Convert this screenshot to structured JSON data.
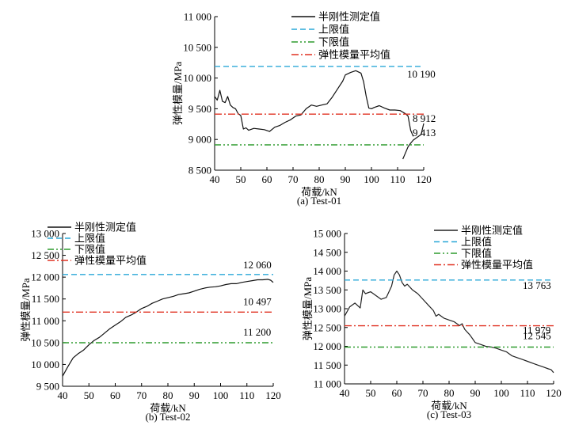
{
  "chart_data": [
    {
      "type": "line",
      "caption": "(a) Test-01",
      "xlabel": "荷载/kN",
      "ylabel": "弹性模量/MPa",
      "xlim": [
        40,
        120
      ],
      "ylim": [
        8500,
        11000
      ],
      "xticks": [
        40,
        50,
        60,
        70,
        80,
        90,
        100,
        110,
        120
      ],
      "xtick_labels": [
        "40",
        "50",
        "60",
        "70",
        "80",
        "90",
        "100",
        "110",
        "120"
      ],
      "yticks": [
        8500,
        9000,
        9500,
        10000,
        10500,
        11000
      ],
      "ytick_labels": [
        "8 500",
        "9 000",
        "9 500",
        "10 000",
        "10 500",
        "11 000"
      ],
      "legend": [
        "半刚性测定值",
        "上限值",
        "下限值",
        "弹性模量平均值"
      ],
      "legend_position": "top-right",
      "series": [
        {
          "name": "半刚性测定值",
          "style": "solid",
          "color": "#111111",
          "x": [
            40,
            41,
            42,
            43,
            44,
            45,
            46,
            47,
            48,
            49,
            50,
            51,
            52,
            53,
            55,
            57,
            59,
            61,
            63,
            65,
            67,
            69,
            71,
            73,
            75,
            77,
            79,
            81,
            83,
            85,
            87,
            89,
            90,
            92,
            94,
            96,
            97,
            98,
            99,
            100,
            101,
            103,
            105,
            107,
            109,
            111,
            113,
            114,
            115,
            116
          ],
          "y": [
            9700,
            9640,
            9800,
            9620,
            9600,
            9700,
            9560,
            9520,
            9500,
            9420,
            9390,
            9170,
            9190,
            9150,
            9180,
            9170,
            9160,
            9130,
            9200,
            9230,
            9280,
            9320,
            9380,
            9400,
            9500,
            9560,
            9540,
            9560,
            9580,
            9690,
            9820,
            9950,
            10050,
            10090,
            10120,
            10080,
            9940,
            9700,
            9510,
            9500,
            9520,
            9550,
            9510,
            9480,
            9480,
            9470,
            9420,
            9380,
            9150,
            9050
          ]
        },
        {
          "name": "半刚性测定值",
          "style": "solid",
          "color": "#111111",
          "x": [
            112,
            113,
            114,
            115,
            116,
            117,
            118,
            119,
            120
          ],
          "y": [
            8680,
            8780,
            8880,
            8940,
            8990,
            9020,
            9050,
            9080,
            9260
          ]
        },
        {
          "name": "上限值",
          "style": "dashed",
          "color": "#2aa8d8",
          "value": 10190,
          "x": [
            40,
            120
          ],
          "y": [
            10190,
            10190
          ]
        },
        {
          "name": "下限值",
          "style": "dashdotdot",
          "color": "#2e9b2e",
          "value": 8912,
          "x": [
            40,
            120
          ],
          "y": [
            8912,
            8912
          ]
        },
        {
          "name": "弹性模量平均值",
          "style": "dashdot",
          "color": "#e03020",
          "value": 9413,
          "x": [
            40,
            120
          ],
          "y": [
            9413,
            9413
          ]
        }
      ],
      "annotations": [
        "10 190",
        "9 413",
        "8 912"
      ]
    },
    {
      "type": "line",
      "caption": "(b) Test-02",
      "xlabel": "荷载/kN",
      "ylabel": "弹性模量/MPa",
      "xlim": [
        40,
        120
      ],
      "ylim": [
        9500,
        13000
      ],
      "xticks": [
        40,
        50,
        60,
        70,
        80,
        90,
        100,
        110,
        120
      ],
      "xtick_labels": [
        "40",
        "50",
        "60",
        "70",
        "80",
        "90",
        "100",
        "110",
        "120"
      ],
      "yticks": [
        9500,
        10000,
        10500,
        11000,
        11500,
        12000,
        12500,
        13000
      ],
      "ytick_labels": [
        "9 500",
        "10 000",
        "10 500",
        "11 000",
        "11 500",
        "12 000",
        "12 500",
        "13 000"
      ],
      "legend": [
        "半刚性测定值",
        "上限值",
        "下限值",
        "弹性模量平均值"
      ],
      "legend_position": "top-left",
      "series": [
        {
          "name": "半刚性测定值",
          "style": "solid",
          "color": "#111111",
          "x": [
            40,
            42,
            44,
            46,
            48,
            50,
            52,
            54,
            56,
            58,
            60,
            62,
            64,
            66,
            68,
            70,
            72,
            74,
            76,
            78,
            80,
            82,
            84,
            86,
            88,
            90,
            92,
            94,
            96,
            98,
            100,
            102,
            104,
            106,
            108,
            110,
            112,
            114,
            116,
            118,
            119,
            120
          ],
          "y": [
            9730,
            9950,
            10150,
            10250,
            10330,
            10450,
            10550,
            10620,
            10720,
            10820,
            10900,
            10980,
            11080,
            11130,
            11200,
            11280,
            11330,
            11400,
            11450,
            11500,
            11530,
            11560,
            11600,
            11620,
            11640,
            11680,
            11720,
            11750,
            11770,
            11780,
            11800,
            11830,
            11850,
            11850,
            11880,
            11900,
            11920,
            11940,
            11940,
            11950,
            11930,
            11880
          ]
        },
        {
          "name": "上限值",
          "style": "dashed",
          "color": "#2aa8d8",
          "value": 12060,
          "x": [
            40,
            120
          ],
          "y": [
            12060,
            12060
          ]
        },
        {
          "name": "下限值",
          "style": "dashdotdot",
          "color": "#2e9b2e",
          "value": 10497,
          "x": [
            40,
            120
          ],
          "y": [
            10497,
            10497
          ]
        },
        {
          "name": "弹性模量平均值",
          "style": "dashdot",
          "color": "#e03020",
          "value": 11200,
          "x": [
            40,
            120
          ],
          "y": [
            11200,
            11200
          ]
        }
      ],
      "annotations": [
        "12 060",
        "11 200",
        "10 497"
      ]
    },
    {
      "type": "line",
      "caption": "(c) Test-03",
      "xlabel": "荷载/kN",
      "ylabel": "弹性模量/MPa",
      "xlim": [
        40,
        120
      ],
      "ylim": [
        11000,
        15000
      ],
      "xticks": [
        40,
        50,
        60,
        70,
        80,
        90,
        100,
        110,
        120
      ],
      "xtick_labels": [
        "40",
        "50",
        "60",
        "70",
        "80",
        "90",
        "100",
        "110",
        "120"
      ],
      "yticks": [
        11000,
        11500,
        12000,
        12500,
        13000,
        13500,
        14000,
        14500,
        15000
      ],
      "ytick_labels": [
        "11 000",
        "11 500",
        "12 000",
        "12 500",
        "13 000",
        "13 500",
        "14 000",
        "14 500",
        "15 000"
      ],
      "legend": [
        "半刚性测定值",
        "上限值",
        "下限值",
        "弹性模量平均值"
      ],
      "legend_position": "top-right",
      "series": [
        {
          "name": "半刚性测定值",
          "style": "solid",
          "color": "#222222",
          "x": [
            40,
            42,
            44,
            46,
            47,
            48,
            50,
            52,
            54,
            56,
            58,
            59,
            60,
            61,
            62,
            63,
            64,
            66,
            68,
            70,
            72,
            74,
            75,
            76,
            78,
            80,
            82,
            84,
            85,
            86,
            88,
            89,
            90,
            92,
            94,
            96,
            98,
            100,
            102,
            104,
            106,
            108,
            110,
            112,
            114,
            116,
            118,
            119,
            120
          ],
          "y": [
            12800,
            13050,
            13150,
            13020,
            13500,
            13400,
            13450,
            13350,
            13250,
            13300,
            13600,
            13900,
            14000,
            13900,
            13700,
            13600,
            13650,
            13500,
            13400,
            13250,
            13100,
            12950,
            12800,
            12850,
            12750,
            12700,
            12650,
            12550,
            12600,
            12450,
            12300,
            12200,
            12100,
            12050,
            12000,
            11980,
            11950,
            11900,
            11850,
            11750,
            11700,
            11650,
            11600,
            11550,
            11500,
            11450,
            11400,
            11380,
            11300
          ]
        },
        {
          "name": "上限值",
          "style": "dashed",
          "color": "#2aa8d8",
          "value": 13763,
          "x": [
            40,
            120
          ],
          "y": [
            13763,
            13763
          ]
        },
        {
          "name": "下限值",
          "style": "dashdotdot",
          "color": "#2e9b2e",
          "value": 11979,
          "x": [
            40,
            120
          ],
          "y": [
            11979,
            11979
          ]
        },
        {
          "name": "弹性模量平均值",
          "style": "dashdot",
          "color": "#e03020",
          "value": 12545,
          "x": [
            40,
            120
          ],
          "y": [
            12545,
            12545
          ]
        }
      ],
      "annotations": [
        "13 763",
        "12 545",
        "11 979"
      ]
    }
  ]
}
